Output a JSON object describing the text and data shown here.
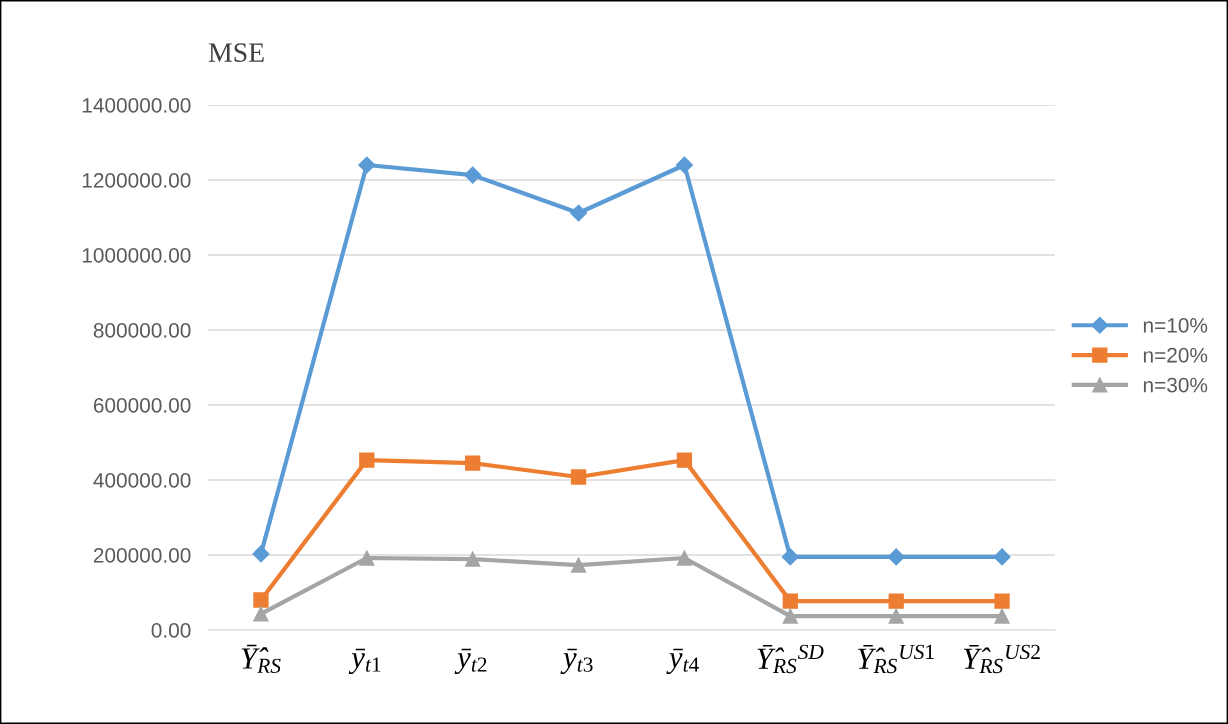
{
  "chart_data": {
    "type": "line",
    "title": "MSE",
    "categories": [
      "Ȳ̂$_{RS}$",
      "ȳ$_{t1}$",
      "ȳ$_{t2}$",
      "ȳ$_{t3}$",
      "ȳ$_{t4}$",
      "Ȳ̂$_{RS}$$^{SD}$",
      "Ȳ̂$_{RS}$$^{US1}$",
      "Ȳ̂$_{RS}$$^{US2}$"
    ],
    "series": [
      {
        "name": "n=10%",
        "color": "#5b9bd5",
        "marker": "diamond",
        "values": [
          203000,
          1240000,
          1213000,
          1112000,
          1240000,
          195000,
          195000,
          195000
        ]
      },
      {
        "name": "n=20%",
        "color": "#ed7d31",
        "marker": "square",
        "values": [
          80000,
          453000,
          445000,
          408000,
          453000,
          77000,
          77000,
          77000
        ]
      },
      {
        "name": "n=30%",
        "color": "#a5a5a5",
        "marker": "triangle",
        "values": [
          43000,
          192000,
          189000,
          173000,
          192000,
          37000,
          37000,
          37000
        ]
      }
    ],
    "ylim": [
      0,
      1400000
    ],
    "yticks": [
      {
        "value": 0,
        "label": "0.00"
      },
      {
        "value": 200000,
        "label": "200000.00"
      },
      {
        "value": 400000,
        "label": "400000.00"
      },
      {
        "value": 600000,
        "label": "600000.00"
      },
      {
        "value": 800000,
        "label": "800000.00"
      },
      {
        "value": 1000000,
        "label": "1000000.00"
      },
      {
        "value": 1200000,
        "label": "1200000.00"
      },
      {
        "value": 1400000,
        "label": "1400000.00"
      }
    ],
    "grid": "y",
    "legend": "right",
    "line_style": "solid"
  }
}
